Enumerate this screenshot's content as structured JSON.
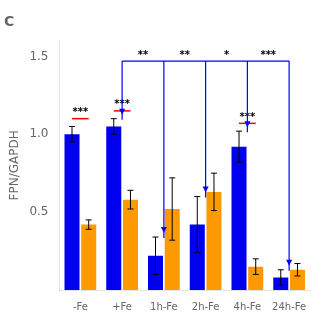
{
  "chart_data": {
    "type": "bar",
    "title": "C",
    "y_label": "FPN/GAPDH",
    "categories": [
      "-Fe",
      "+Fe",
      "1h-Fe",
      "2h-Fe",
      "4h-Fe",
      "24h-Fe"
    ],
    "series": [
      {
        "color": "#0000ee",
        "values": [
          1.0,
          1.05,
          0.22,
          0.42,
          0.92,
          0.08
        ],
        "errors": [
          0.05,
          0.05,
          0.12,
          0.18,
          0.1,
          0.05
        ]
      },
      {
        "color": "#ff9900",
        "values": [
          0.42,
          0.58,
          0.52,
          0.63,
          0.15,
          0.13
        ],
        "errors": [
          0.03,
          0.06,
          0.2,
          0.12,
          0.05,
          0.04
        ]
      }
    ],
    "ylim": [
      0,
      1.6
    ],
    "yticks": [
      0.5,
      {
        "value": 1.0,
        "label": "1.0"
      },
      1.5
    ],
    "grid": false,
    "significance": [
      {
        "category": "-Fe",
        "label": "***",
        "y": 1.1,
        "color": "red"
      },
      {
        "category": "+Fe",
        "label": "***",
        "y": 1.15,
        "color": "red"
      },
      {
        "category": "4h-Fe",
        "label": "***",
        "y": 1.07,
        "color": "red"
      }
    ],
    "bracket": {
      "y": 1.47,
      "color": "blue",
      "from": "+Fe",
      "to": "24h-Fe",
      "arrow_targets": [
        "+Fe",
        "1h-Fe",
        "2h-Fe",
        "4h-Fe",
        "24h-Fe"
      ],
      "labels": [
        "**",
        "**",
        "*",
        "***"
      ]
    }
  }
}
